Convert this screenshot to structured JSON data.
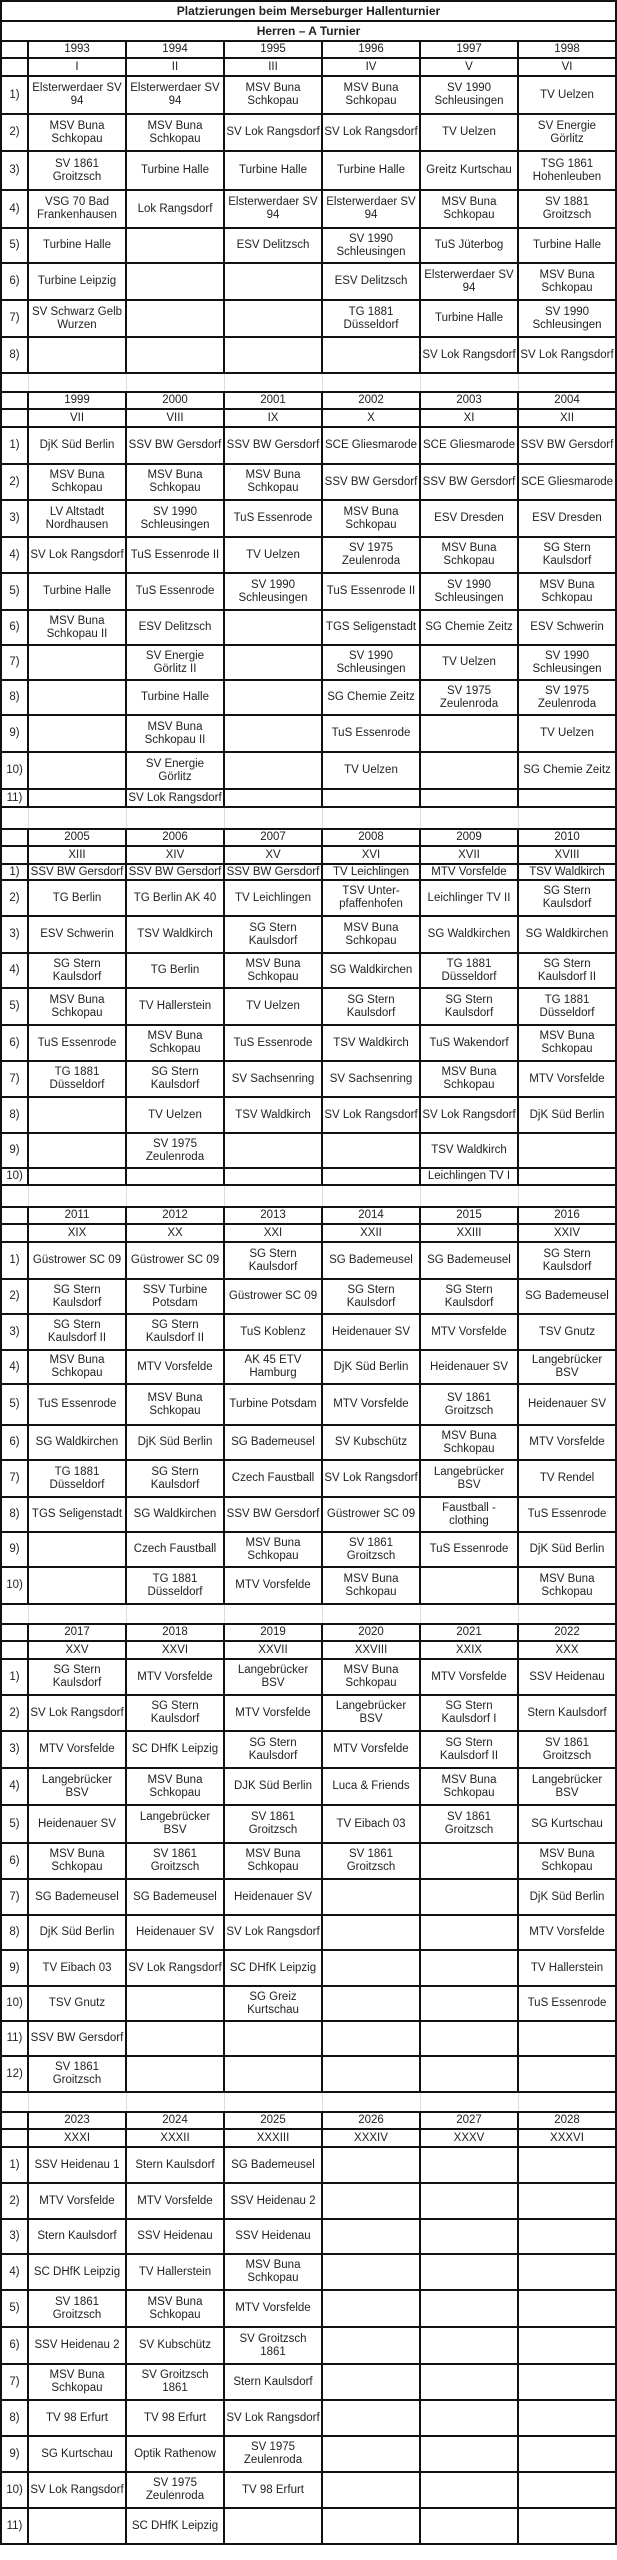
{
  "title": "Platzierungen beim Merseburger Hallenturnier",
  "subtitle": "Herren – A Turnier",
  "blocks": [
    {
      "years": [
        "1993",
        "1994",
        "1995",
        "1996",
        "1997",
        "1998"
      ],
      "roman": [
        "I",
        "II",
        "III",
        "IV",
        "V",
        "VI"
      ],
      "rows": [
        {
          "label": "1)",
          "cells": [
            "Elsterwerdaer SV 94",
            "Elsterwerdaer SV 94",
            "MSV Buna Schkopau",
            "MSV Buna Schkopau",
            "SV 1990 Schleusingen",
            "TV Uelzen"
          ]
        },
        {
          "label": "2)",
          "cells": [
            "MSV Buna Schkopau",
            "MSV Buna Schkopau",
            "SV Lok Rangsdorf",
            "SV Lok Rangsdorf",
            "TV Uelzen",
            "SV Energie Görlitz"
          ]
        },
        {
          "label": "3)",
          "cells": [
            "SV 1861 Groitzsch",
            "Turbine Halle",
            "Turbine Halle",
            "Turbine Halle",
            "Greitz Kurtschau",
            "TSG 1861 Hohenleuben"
          ]
        },
        {
          "label": "4)",
          "cells": [
            "VSG 70 Bad Frankenhausen",
            "Lok Rangsdorf",
            "Elsterwerdaer SV 94",
            "Elsterwerdaer SV 94",
            "MSV Buna Schkopau",
            "SV 1881 Groitzsch"
          ]
        },
        {
          "label": "5)",
          "cells": [
            "Turbine Halle",
            "",
            "ESV Delitzsch",
            "SV 1990 Schleusingen",
            "TuS Jüterbog",
            "Turbine Halle"
          ]
        },
        {
          "label": "6)",
          "cells": [
            "Turbine Leipzig",
            "",
            "",
            "ESV Delitzsch",
            "Elsterwerdaer SV 94",
            "MSV Buna Schkopau"
          ]
        },
        {
          "label": "7)",
          "cells": [
            "SV Schwarz Gelb Wurzen",
            "",
            "",
            "TG 1881 Düsseldorf",
            "Turbine Halle",
            "SV 1990 Schleusingen"
          ]
        },
        {
          "label": "8)",
          "cells": [
            "",
            "",
            "",
            "",
            "SV Lok Rangsdorf",
            "SV Lok Rangsdorf"
          ]
        }
      ]
    },
    {
      "years": [
        "1999",
        "2000",
        "2001",
        "2002",
        "2003",
        "2004"
      ],
      "roman": [
        "VII",
        "VIII",
        "IX",
        "X",
        "XI",
        "XII"
      ],
      "rows": [
        {
          "label": "1)",
          "cells": [
            "DjK Süd Berlin",
            "SSV BW Gersdorf",
            "SSV BW Gersdorf",
            "SCE Gliesmarode",
            "SCE Gliesmarode",
            "SSV BW Gersdorf"
          ]
        },
        {
          "label": "2)",
          "cells": [
            "MSV Buna Schkopau",
            "MSV Buna Schkopau",
            "MSV Buna Schkopau",
            "SSV BW Gersdorf",
            "SSV BW Gersdorf",
            "SCE Gliesmarode"
          ]
        },
        {
          "label": "3)",
          "cells": [
            "LV Altstadt Nordhausen",
            "SV 1990 Schleusingen",
            "TuS Essenrode",
            "MSV Buna Schkopau",
            "ESV Dresden",
            "ESV Dresden"
          ]
        },
        {
          "label": "4)",
          "cells": [
            "SV Lok Rangsdorf",
            "TuS Essenrode II",
            "TV Uelzen",
            "SV 1975 Zeulenroda",
            "MSV Buna Schkopau",
            "SG Stern Kaulsdorf"
          ]
        },
        {
          "label": "5)",
          "cells": [
            "Turbine Halle",
            "TuS Essenrode",
            "SV 1990 Schleusingen",
            "TuS Essenrode II",
            "SV 1990 Schleusingen",
            "MSV Buna Schkopau"
          ]
        },
        {
          "label": "6)",
          "cells": [
            "MSV Buna Schkopau II",
            "ESV Delitzsch",
            "",
            "TGS Seligenstadt",
            "SG Chemie Zeitz",
            "ESV Schwerin"
          ]
        },
        {
          "label": "7)",
          "cells": [
            "",
            "SV Energie Görlitz II",
            "",
            "SV 1990 Schleusingen",
            "TV Uelzen",
            "SV 1990 Schleusingen"
          ]
        },
        {
          "label": "8)",
          "cells": [
            "",
            "Turbine Halle",
            "",
            "SG Chemie Zeitz",
            "SV 1975 Zeulenroda",
            "SV 1975 Zeulenroda"
          ]
        },
        {
          "label": "9)",
          "cells": [
            "",
            "MSV Buna Schkopau II",
            "",
            "TuS Essenrode",
            "",
            "TV Uelzen"
          ]
        },
        {
          "label": "10)",
          "cells": [
            "",
            "SV Energie Görlitz",
            "",
            "TV Uelzen",
            "",
            "SG Chemie Zeitz"
          ]
        },
        {
          "label": "11)",
          "cells": [
            "",
            "SV Lok Rangsdorf",
            "",
            "",
            "",
            ""
          ]
        }
      ]
    },
    {
      "years": [
        "2005",
        "2006",
        "2007",
        "2008",
        "2009",
        "2010"
      ],
      "roman": [
        "XIII",
        "XIV",
        "XV",
        "XVI",
        "XVII",
        "XVIII"
      ],
      "rows": [
        {
          "label": "1)",
          "cells": [
            "SSV BW Gersdorf",
            "SSV BW Gersdorf",
            "SSV BW Gersdorf",
            "TV Leichlingen",
            "MTV Vorsfelde",
            "TSV Waldkirch"
          ]
        },
        {
          "label": "2)",
          "cells": [
            "TG Berlin",
            "TG Berlin AK 40",
            "TV Leichlingen",
            "TSV Unter-pfaffenhofen",
            "Leichlinger TV II",
            "SG Stern Kaulsdorf"
          ]
        },
        {
          "label": "3)",
          "cells": [
            "ESV Schwerin",
            "TSV Waldkirch",
            "SG Stern Kaulsdorf",
            "MSV Buna Schkopau",
            "SG Waldkirchen",
            "SG Waldkirchen"
          ]
        },
        {
          "label": "4)",
          "cells": [
            "SG Stern Kaulsdorf",
            "TG Berlin",
            "MSV Buna Schkopau",
            "SG Waldkirchen",
            "TG 1881 Düsseldorf",
            "SG Stern Kaulsdorf II"
          ]
        },
        {
          "label": "5)",
          "cells": [
            "MSV Buna Schkopau",
            "TV Hallerstein",
            "TV Uelzen",
            "SG Stern Kaulsdorf",
            "SG Stern Kaulsdorf",
            "TG 1881 Düsseldorf"
          ]
        },
        {
          "label": "6)",
          "cells": [
            "TuS Essenrode",
            "MSV Buna Schkopau",
            "TuS Essenrode",
            "TSV Waldkirch",
            "TuS Wakendorf",
            "MSV Buna Schkopau"
          ]
        },
        {
          "label": "7)",
          "cells": [
            "TG 1881 Düsseldorf",
            "SG Stern Kaulsdorf",
            "SV Sachsenring",
            "SV Sachsenring",
            "MSV Buna Schkopau",
            "MTV Vorsfelde"
          ]
        },
        {
          "label": "8)",
          "cells": [
            "",
            "TV Uelzen",
            "TSV Waldkirch",
            "SV Lok Rangsdorf",
            "SV Lok Rangsdorf",
            "DjK Süd Berlin"
          ]
        },
        {
          "label": "9)",
          "cells": [
            "",
            "SV 1975 Zeulenroda",
            "",
            "",
            "TSV Waldkirch",
            ""
          ]
        },
        {
          "label": "10)",
          "cells": [
            "",
            "",
            "",
            "",
            "Leichlingen TV I",
            ""
          ]
        }
      ]
    },
    {
      "years": [
        "2011",
        "2012",
        "2013",
        "2014",
        "2015",
        "2016"
      ],
      "roman": [
        "XIX",
        "XX",
        "XXI",
        "XXII",
        "XXIII",
        "XXIV"
      ],
      "rows": [
        {
          "label": "1)",
          "cells": [
            "Güstrower SC 09",
            "Güstrower SC 09",
            "SG Stern Kaulsdorf",
            "SG Bademeusel",
            "SG Bademeusel",
            "SG Stern Kaulsdorf"
          ]
        },
        {
          "label": "2)",
          "cells": [
            "SG Stern Kaulsdorf",
            "SSV Turbine Potsdam",
            "Güstrower SC 09",
            "SG Stern Kaulsdorf",
            "SG Stern Kaulsdorf",
            "SG Bademeusel"
          ]
        },
        {
          "label": "3)",
          "cells": [
            "SG Stern Kaulsdorf  II",
            "SG Stern Kaulsdorf II",
            "TuS Koblenz",
            "Heidenauer SV",
            "MTV Vorsfelde",
            "TSV Gnutz"
          ]
        },
        {
          "label": "4)",
          "cells": [
            "MSV Buna Schkopau",
            "MTV Vorsfelde",
            "AK 45 ETV Hamburg",
            "DjK Süd Berlin",
            "Heidenauer SV",
            "Langebrücker BSV"
          ]
        },
        {
          "label": "5)",
          "cells": [
            "TuS Essenrode",
            "MSV Buna Schkopau",
            "Turbine Potsdam",
            "MTV Vorsfelde",
            "SV 1861 Groitzsch",
            "Heidenauer SV"
          ]
        },
        {
          "label": "6)",
          "cells": [
            "SG Waldkirchen",
            "DjK Süd Berlin",
            "SG Bademeusel",
            "SV Kubschütz",
            "MSV Buna Schkopau",
            "MTV Vorsfelde"
          ]
        },
        {
          "label": "7)",
          "cells": [
            "TG 1881 Düsseldorf",
            "SG Stern Kaulsdorf",
            "Czech Faustball",
            "SV Lok Rangsdorf",
            "Langebrücker BSV",
            "TV Rendel"
          ]
        },
        {
          "label": "8)",
          "cells": [
            "TGS Seligenstadt",
            "SG Waldkirchen",
            "SSV BW Gersdorf",
            "Güstrower SC 09",
            "Faustball - clothing",
            "TuS Essenrode"
          ]
        },
        {
          "label": "9)",
          "cells": [
            "",
            "Czech Faustball",
            "MSV Buna Schkopau",
            "SV 1861 Groitzsch",
            "TuS Essenrode",
            "DjK Süd Berlin"
          ]
        },
        {
          "label": "10)",
          "cells": [
            "",
            "TG 1881 Düsseldorf",
            "MTV Vorsfelde",
            "MSV Buna Schkopau",
            "",
            "MSV Buna Schkopau"
          ]
        }
      ]
    },
    {
      "years": [
        "2017",
        "2018",
        "2019",
        "2020",
        "2021",
        "2022"
      ],
      "roman": [
        "XXV",
        "XXVI",
        "XXVII",
        "XXVIII",
        "XXIX",
        "XXX"
      ],
      "rows": [
        {
          "label": "1)",
          "cells": [
            "SG Stern Kaulsdorf",
            "MTV Vorsfelde",
            "Langebrücker BSV",
            "MSV Buna Schkopau",
            "MTV Vorsfelde",
            "SSV Heidenau"
          ]
        },
        {
          "label": "2)",
          "cells": [
            "SV Lok Rangsdorf",
            "SG Stern Kaulsdorf",
            "MTV Vorsfelde",
            "Langebrücker BSV",
            "SG Stern Kaulsdorf I",
            "Stern Kaulsdorf"
          ]
        },
        {
          "label": "3)",
          "cells": [
            "MTV Vorsfelde",
            "SC DHfK Leipzig",
            "SG Stern Kaulsdorf",
            "MTV Vorsfelde",
            "SG Stern Kaulsdorf II",
            "SV 1861 Groitzsch"
          ]
        },
        {
          "label": "4)",
          "cells": [
            "Langebrücker BSV",
            "MSV Buna Schkopau",
            "DJK Süd Berlin",
            "Luca & Friends",
            "MSV Buna Schkopau",
            "Langebrücker BSV"
          ]
        },
        {
          "label": "5)",
          "cells": [
            "Heidenauer SV",
            "Langebrücker BSV",
            "SV 1861 Groitzsch",
            "TV Eibach 03",
            "SV 1861 Groitzsch",
            "SG Kurtschau"
          ]
        },
        {
          "label": "6)",
          "cells": [
            "MSV Buna Schkopau",
            "SV 1861 Groitzsch",
            "MSV Buna Schkopau",
            "SV 1861 Groitzsch",
            "",
            "MSV Buna Schkopau"
          ]
        },
        {
          "label": "7)",
          "cells": [
            "SG Bademeusel",
            "SG Bademeusel",
            "Heidenauer SV",
            "",
            "",
            "DjK Süd Berlin"
          ]
        },
        {
          "label": "8)",
          "cells": [
            "DjK Süd Berlin",
            "Heidenauer SV",
            "SV Lok Rangsdorf",
            "",
            "",
            "MTV Vorsfelde"
          ]
        },
        {
          "label": "9)",
          "cells": [
            "TV Eibach 03",
            "SV Lok Rangsdorf",
            "SC DHfK Leipzig",
            "",
            "",
            "TV Hallerstein"
          ]
        },
        {
          "label": "10)",
          "cells": [
            "TSV Gnutz",
            "",
            "SG Greiz Kurtschau",
            "",
            "",
            "TuS Essenrode"
          ]
        },
        {
          "label": "11)",
          "cells": [
            "SSV BW Gersdorf",
            "",
            "",
            "",
            "",
            ""
          ]
        },
        {
          "label": "12)",
          "cells": [
            "SV 1861 Groitzsch",
            "",
            "",
            "",
            "",
            ""
          ]
        }
      ]
    },
    {
      "years": [
        "2023",
        "2024",
        "2025",
        "2026",
        "2027",
        "2028"
      ],
      "roman": [
        "XXXI",
        "XXXII",
        "XXXIII",
        "XXXIV",
        "XXXV",
        "XXXVI"
      ],
      "rows": [
        {
          "label": "1)",
          "cells": [
            "SSV Heidenau 1",
            "Stern Kaulsdorf",
            "SG Bademeusel",
            "",
            "",
            ""
          ]
        },
        {
          "label": "2)",
          "cells": [
            "MTV Vorsfelde",
            "MTV Vorsfelde",
            "SSV Heidenau 2",
            "",
            "",
            ""
          ]
        },
        {
          "label": "3)",
          "cells": [
            "Stern Kaulsdorf",
            "SSV Heidenau",
            "SSV Heidenau",
            "",
            "",
            ""
          ]
        },
        {
          "label": "4)",
          "cells": [
            "SC DHfK Leipzig",
            "TV Hallerstein",
            "MSV Buna Schkopau",
            "",
            "",
            ""
          ]
        },
        {
          "label": "5)",
          "cells": [
            "SV 1861 Groitzsch",
            "MSV Buna Schkopau",
            "MTV Vorsfelde",
            "",
            "",
            ""
          ]
        },
        {
          "label": "6)",
          "cells": [
            "SSV Heidenau 2",
            "SV Kubschütz",
            "SV Groitzsch 1861",
            "",
            "",
            ""
          ]
        },
        {
          "label": "7)",
          "cells": [
            "MSV Buna Schkopau",
            "SV Groitzsch 1861",
            "Stern Kaulsdorf",
            "",
            "",
            ""
          ]
        },
        {
          "label": "8)",
          "cells": [
            "TV 98 Erfurt",
            "TV 98 Erfurt",
            "SV Lok Rangsdorf",
            "",
            "",
            ""
          ]
        },
        {
          "label": "9)",
          "cells": [
            "SG Kurtschau",
            "Optik Rathenow",
            "SV 1975 Zeulenroda",
            "",
            "",
            ""
          ]
        },
        {
          "label": "10)",
          "cells": [
            "SV Lok Rangsdorf",
            "SV 1975 Zeulenroda",
            "TV 98 Erfurt",
            "",
            "",
            ""
          ]
        },
        {
          "label": "11)",
          "cells": [
            "",
            "SC DHfK Leipzig",
            "",
            "",
            "",
            ""
          ]
        }
      ]
    }
  ]
}
